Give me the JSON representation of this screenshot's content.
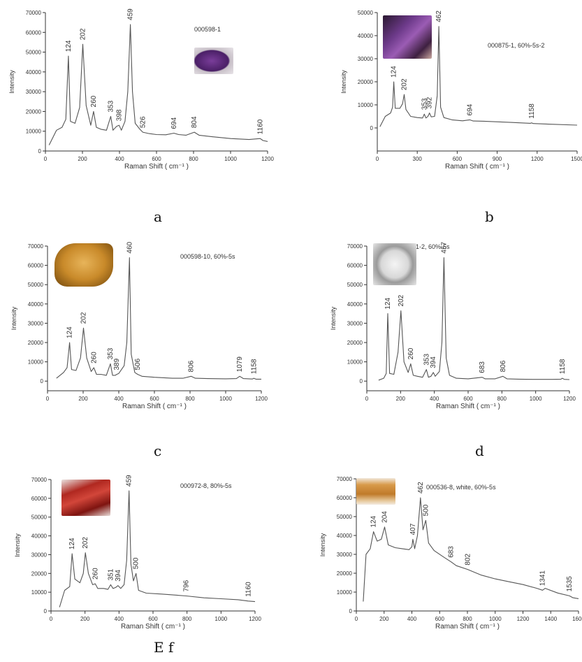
{
  "colors": {
    "line": "#555555",
    "axis": "#333333",
    "text": "#333333"
  },
  "subcaptions": {
    "a": "a",
    "b": "b",
    "c": "c",
    "d": "d",
    "ef": "E f"
  },
  "chart_data": [
    {
      "type": "line",
      "panel": "a",
      "sample": "000598-1",
      "xlabel": "Raman Shift ( cm⁻¹ )",
      "ylabel": "Intensity",
      "xlim": [
        0,
        1200
      ],
      "ylim": [
        0,
        70000
      ],
      "xticks": [
        0,
        200,
        400,
        600,
        800,
        1000,
        1200
      ],
      "yticks": [
        0,
        10000,
        20000,
        30000,
        40000,
        50000,
        60000,
        70000
      ],
      "grid": false,
      "series": [
        {
          "x": [
            20,
            60,
            90,
            110,
            124,
            135,
            160,
            185,
            202,
            220,
            245,
            260,
            275,
            300,
            330,
            353,
            365,
            385,
            398,
            410,
            430,
            445,
            459,
            470,
            485,
            510,
            526,
            560,
            600,
            650,
            694,
            720,
            760,
            804,
            830,
            900,
            1000,
            1100,
            1160,
            1175,
            1200
          ],
          "values": [
            3000,
            10500,
            12000,
            16000,
            48000,
            15000,
            14000,
            22000,
            54000,
            23000,
            13000,
            20000,
            12000,
            11000,
            10500,
            17500,
            10500,
            12500,
            13000,
            10500,
            15000,
            30000,
            64000,
            30000,
            14000,
            11000,
            9500,
            8800,
            8300,
            8200,
            9000,
            8300,
            8000,
            9500,
            8000,
            7200,
            6300,
            5800,
            6300,
            5300,
            4800
          ]
        }
      ],
      "peak_labels": [
        {
          "x": 124,
          "y": 48000,
          "text": "124"
        },
        {
          "x": 202,
          "y": 54000,
          "text": "202"
        },
        {
          "x": 260,
          "y": 20000,
          "text": "260"
        },
        {
          "x": 353,
          "y": 17500,
          "text": "353"
        },
        {
          "x": 398,
          "y": 13000,
          "text": "398"
        },
        {
          "x": 459,
          "y": 64000,
          "text": "459"
        },
        {
          "x": 526,
          "y": 9500,
          "text": "526"
        },
        {
          "x": 694,
          "y": 9000,
          "text": "694"
        },
        {
          "x": 804,
          "y": 9500,
          "text": "804"
        },
        {
          "x": 1160,
          "y": 6300,
          "text": "1160"
        }
      ]
    },
    {
      "type": "line",
      "panel": "b",
      "sample": "000875-1, 60%-5s-2",
      "xlabel": "Raman Shift ( cm⁻¹ )",
      "ylabel": "Intensity",
      "xlim": [
        0,
        1500
      ],
      "ylim": [
        -10000,
        50000
      ],
      "xticks": [
        0,
        300,
        600,
        900,
        1200,
        1500
      ],
      "yticks": [
        0,
        10000,
        20000,
        30000,
        40000,
        50000
      ],
      "grid": false,
      "series": [
        {
          "x": [
            20,
            60,
            100,
            115,
            124,
            135,
            170,
            190,
            202,
            215,
            250,
            300,
            340,
            353,
            365,
            380,
            392,
            405,
            430,
            450,
            462,
            475,
            500,
            560,
            640,
            694,
            720,
            800,
            1000,
            1150,
            1158,
            1170,
            1300,
            1500
          ],
          "values": [
            500,
            5000,
            6500,
            9000,
            20000,
            8500,
            8500,
            10500,
            14500,
            8000,
            5000,
            4500,
            4300,
            6000,
            4300,
            5000,
            6500,
            4800,
            5000,
            14000,
            44000,
            9000,
            4500,
            3500,
            3100,
            3500,
            3000,
            2900,
            2400,
            2000,
            2200,
            1900,
            1600,
            1200
          ]
        }
      ],
      "peak_labels": [
        {
          "x": 124,
          "y": 20000,
          "text": "124"
        },
        {
          "x": 202,
          "y": 14500,
          "text": "202"
        },
        {
          "x": 353,
          "y": 6000,
          "text": "353"
        },
        {
          "x": 392,
          "y": 6500,
          "text": "392"
        },
        {
          "x": 462,
          "y": 44000,
          "text": "462"
        },
        {
          "x": 694,
          "y": 3500,
          "text": "694"
        },
        {
          "x": 1158,
          "y": 2200,
          "text": "1158"
        }
      ]
    },
    {
      "type": "line",
      "panel": "c",
      "sample": "000598-10, 60%-5s",
      "xlabel": "Raman Shift ( cm⁻¹ )",
      "ylabel": "Intensity",
      "xlim": [
        0,
        1200
      ],
      "ylim": [
        -5000,
        70000
      ],
      "xticks": [
        0,
        200,
        400,
        600,
        800,
        1000,
        1200
      ],
      "yticks": [
        0,
        10000,
        20000,
        30000,
        40000,
        50000,
        60000,
        70000
      ],
      "grid": false,
      "series": [
        {
          "x": [
            50,
            90,
            110,
            124,
            135,
            160,
            185,
            202,
            220,
            245,
            260,
            275,
            300,
            330,
            353,
            365,
            380,
            389,
            400,
            430,
            445,
            460,
            470,
            490,
            506,
            530,
            600,
            700,
            760,
            806,
            830,
            900,
            1000,
            1060,
            1079,
            1100,
            1150,
            1158,
            1170,
            1200
          ],
          "values": [
            1500,
            4500,
            7000,
            20000,
            6000,
            5500,
            12000,
            27500,
            12000,
            5000,
            7000,
            3500,
            3500,
            3000,
            9000,
            3000,
            3000,
            3500,
            4000,
            8000,
            20000,
            64000,
            14000,
            4500,
            3500,
            2500,
            2000,
            1500,
            1500,
            2500,
            1500,
            1300,
            1200,
            1300,
            2500,
            1300,
            1100,
            1500,
            1000,
            1000
          ]
        }
      ],
      "peak_labels": [
        {
          "x": 124,
          "y": 20000,
          "text": "124"
        },
        {
          "x": 202,
          "y": 27500,
          "text": "202"
        },
        {
          "x": 260,
          "y": 7000,
          "text": "260"
        },
        {
          "x": 353,
          "y": 9000,
          "text": "353"
        },
        {
          "x": 389,
          "y": 3500,
          "text": "389"
        },
        {
          "x": 460,
          "y": 64000,
          "text": "460"
        },
        {
          "x": 506,
          "y": 3500,
          "text": "506"
        },
        {
          "x": 806,
          "y": 2500,
          "text": "806"
        },
        {
          "x": 1079,
          "y": 2500,
          "text": "1079"
        },
        {
          "x": 1158,
          "y": 1500,
          "text": "1158"
        }
      ]
    },
    {
      "type": "line",
      "panel": "d",
      "sample": "000931-2, 60%-5s",
      "xlabel": "Raman Shift ( cm⁻¹ )",
      "ylabel": "Intensity",
      "xlim": [
        0,
        1200
      ],
      "ylim": [
        -5000,
        70000
      ],
      "xticks": [
        0,
        200,
        400,
        600,
        800,
        1000,
        1200
      ],
      "yticks": [
        0,
        10000,
        20000,
        30000,
        40000,
        50000,
        60000,
        70000
      ],
      "grid": false,
      "series": [
        {
          "x": [
            70,
            100,
            115,
            124,
            135,
            160,
            185,
            202,
            220,
            245,
            260,
            275,
            300,
            330,
            353,
            365,
            380,
            394,
            405,
            430,
            445,
            457,
            470,
            490,
            530,
            600,
            683,
            700,
            760,
            806,
            830,
            900,
            1000,
            1100,
            1150,
            1158,
            1170,
            1200
          ],
          "values": [
            500,
            1500,
            4000,
            35000,
            4000,
            3500,
            15000,
            36500,
            10000,
            4500,
            9000,
            3000,
            2500,
            2000,
            6000,
            2000,
            2500,
            4500,
            2500,
            5000,
            20000,
            64000,
            12000,
            3000,
            1500,
            1200,
            2000,
            1200,
            1200,
            2500,
            1200,
            1000,
            900,
            900,
            1000,
            1500,
            900,
            800
          ]
        }
      ],
      "peak_labels": [
        {
          "x": 124,
          "y": 35000,
          "text": "124"
        },
        {
          "x": 202,
          "y": 36500,
          "text": "202"
        },
        {
          "x": 260,
          "y": 9000,
          "text": "260"
        },
        {
          "x": 353,
          "y": 6000,
          "text": "353"
        },
        {
          "x": 394,
          "y": 4500,
          "text": "394"
        },
        {
          "x": 457,
          "y": 64000,
          "text": "457"
        },
        {
          "x": 683,
          "y": 2000,
          "text": "683"
        },
        {
          "x": 806,
          "y": 2500,
          "text": "806"
        },
        {
          "x": 1158,
          "y": 1500,
          "text": "1158"
        }
      ]
    },
    {
      "type": "line",
      "panel": "E",
      "sample": "000972-8, 80%-5s",
      "xlabel": "Raman Shift ( cm⁻¹ )",
      "ylabel": "Intensity",
      "xlim": [
        0,
        1200
      ],
      "ylim": [
        0,
        70000
      ],
      "xticks": [
        0,
        200,
        400,
        600,
        800,
        1000,
        1200
      ],
      "yticks": [
        0,
        10000,
        20000,
        30000,
        40000,
        50000,
        60000,
        70000
      ],
      "grid": false,
      "series": [
        {
          "x": [
            50,
            80,
            110,
            124,
            140,
            170,
            190,
            202,
            220,
            245,
            260,
            275,
            310,
            335,
            351,
            365,
            380,
            394,
            410,
            430,
            445,
            459,
            470,
            485,
            500,
            515,
            560,
            650,
            796,
            900,
            1000,
            1100,
            1160,
            1200
          ],
          "values": [
            2000,
            11000,
            13000,
            30500,
            17000,
            15000,
            20000,
            31000,
            20000,
            14000,
            14500,
            12000,
            12000,
            11500,
            14000,
            12000,
            12500,
            13500,
            12000,
            14000,
            27000,
            64000,
            25000,
            16000,
            20000,
            11000,
            9500,
            9000,
            8000,
            7000,
            6500,
            6000,
            5300,
            5000
          ]
        }
      ],
      "peak_labels": [
        {
          "x": 124,
          "y": 30500,
          "text": "124"
        },
        {
          "x": 202,
          "y": 31000,
          "text": "202"
        },
        {
          "x": 260,
          "y": 14500,
          "text": "260"
        },
        {
          "x": 351,
          "y": 14000,
          "text": "351"
        },
        {
          "x": 394,
          "y": 13500,
          "text": "394"
        },
        {
          "x": 459,
          "y": 64000,
          "text": "459"
        },
        {
          "x": 500,
          "y": 20000,
          "text": "500"
        },
        {
          "x": 796,
          "y": 8000,
          "text": "796"
        },
        {
          "x": 1160,
          "y": 5300,
          "text": "1160"
        }
      ]
    },
    {
      "type": "line",
      "panel": "f",
      "sample": "000536-8, white, 60%-5s",
      "xlabel": "Raman Shift ( cm⁻¹ )",
      "ylabel": "Intensity",
      "xlim": [
        0,
        1600
      ],
      "ylim": [
        0,
        70000
      ],
      "xticks": [
        0,
        200,
        400,
        600,
        800,
        1000,
        1200,
        1400,
        1600
      ],
      "yticks": [
        0,
        10000,
        20000,
        30000,
        40000,
        50000,
        60000,
        70000
      ],
      "grid": false,
      "series": [
        {
          "x": [
            50,
            70,
            100,
            124,
            150,
            180,
            204,
            230,
            280,
            330,
            380,
            400,
            407,
            420,
            440,
            462,
            480,
            500,
            520,
            560,
            620,
            683,
            720,
            802,
            900,
            1000,
            1100,
            1200,
            1300,
            1341,
            1360,
            1450,
            1535,
            1560,
            1600
          ],
          "values": [
            5000,
            30000,
            33000,
            42000,
            37000,
            38000,
            44500,
            35000,
            33500,
            33000,
            32500,
            34000,
            38000,
            33000,
            40000,
            60000,
            43000,
            48000,
            36000,
            32000,
            29000,
            26000,
            24000,
            22000,
            19000,
            17000,
            15500,
            14000,
            12000,
            11000,
            12000,
            9500,
            8000,
            7000,
            6500
          ]
        }
      ],
      "peak_labels": [
        {
          "x": 124,
          "y": 42000,
          "text": "124"
        },
        {
          "x": 204,
          "y": 44500,
          "text": "204"
        },
        {
          "x": 407,
          "y": 38000,
          "text": "407"
        },
        {
          "x": 462,
          "y": 60000,
          "text": "462"
        },
        {
          "x": 500,
          "y": 48000,
          "text": "500"
        },
        {
          "x": 683,
          "y": 26000,
          "text": "683"
        },
        {
          "x": 802,
          "y": 22000,
          "text": "802"
        },
        {
          "x": 1341,
          "y": 11000,
          "text": "1341"
        },
        {
          "x": 1535,
          "y": 8000,
          "text": "1535"
        }
      ]
    }
  ]
}
